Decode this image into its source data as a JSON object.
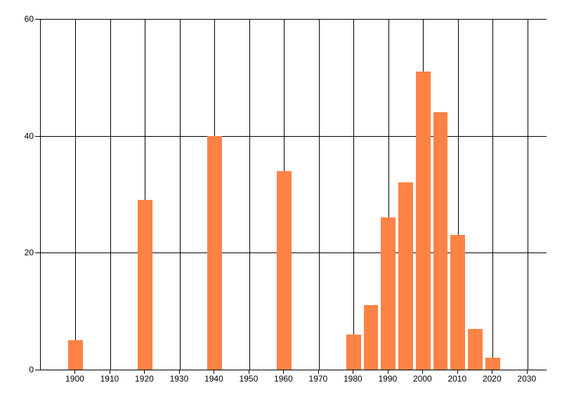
{
  "chart_data": {
    "type": "bar",
    "title": "",
    "xlabel": "",
    "ylabel": "",
    "x": [
      1900,
      1920,
      1940,
      1960,
      1980,
      1985,
      1990,
      1995,
      2000,
      2005,
      2010,
      2015,
      2020
    ],
    "values": [
      5,
      29,
      40,
      34,
      6,
      11,
      26,
      32,
      51,
      44,
      23,
      7,
      2
    ],
    "xlim": [
      1890,
      2035.5
    ],
    "ylim": [
      0,
      60
    ],
    "x_ticks": [
      1900,
      1910,
      1920,
      1930,
      1940,
      1950,
      1960,
      1970,
      1980,
      1990,
      2000,
      2010,
      2020,
      2030
    ],
    "y_ticks": [
      0,
      20,
      40,
      60
    ],
    "bar_width_years": 4.2,
    "bar_color": "#fc8246",
    "grid": true,
    "gridline_color": "#000000",
    "axis_color": "#000000",
    "text_color": "#000000",
    "background_color": "#ffffff",
    "legend": "none"
  }
}
